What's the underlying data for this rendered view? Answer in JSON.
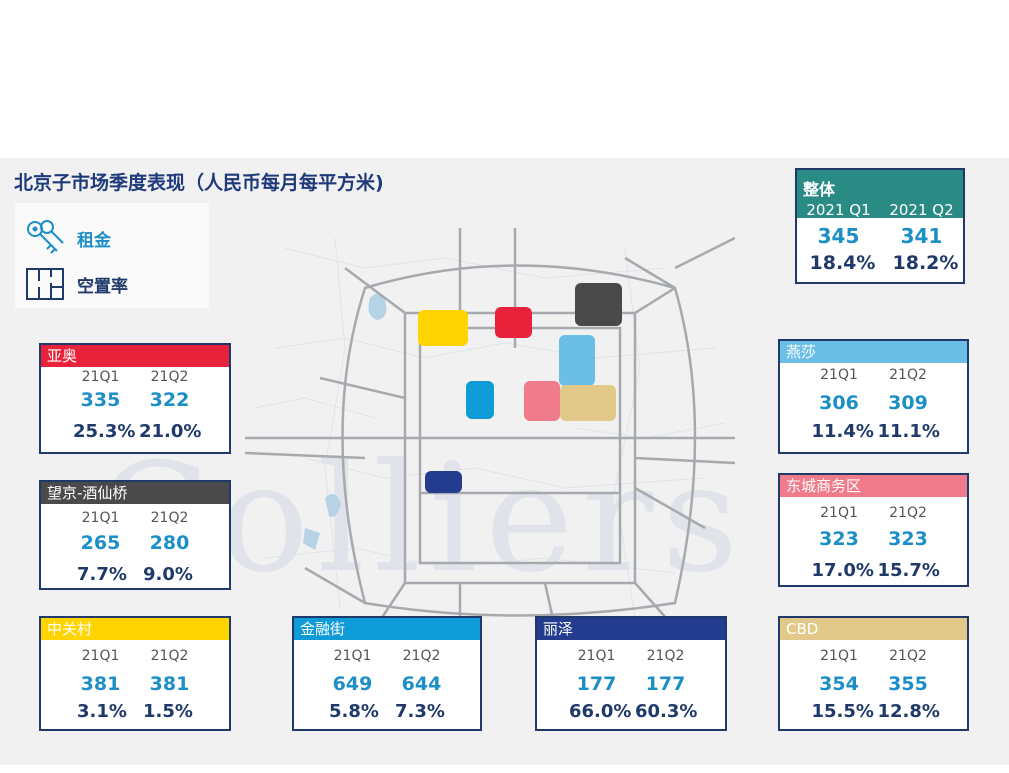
{
  "title": "北京子市场季度表现（人民币每月每平方米)",
  "legend": {
    "rent_label": "租金",
    "vacancy_label": "空置率",
    "rent_icon": "key-icon",
    "vacancy_icon": "floorplan-icon"
  },
  "watermark": "Colliers",
  "overall": {
    "title": "整体",
    "q1_label": "2021 Q1",
    "q2_label": "2021 Q2",
    "rent_q1": "345",
    "rent_q2": "341",
    "vac_q1": "18.4%",
    "vac_q2": "18.2%",
    "color": "#2a8a84"
  },
  "submarkets": [
    {
      "name": "亚奥",
      "color": "#e8223a",
      "q1": "21Q1",
      "q2": "21Q2",
      "rent_q1": "335",
      "rent_q2": "322",
      "vac_q1": "25.3%",
      "vac_q2": "21.0%"
    },
    {
      "name": "望京-酒仙桥",
      "color": "#4a4a4a",
      "q1": "21Q1",
      "q2": "21Q2",
      "rent_q1": "265",
      "rent_q2": "280",
      "vac_q1": "7.7%",
      "vac_q2": "9.0%"
    },
    {
      "name": "中关村",
      "color": "#ffd400",
      "q1": "21Q1",
      "q2": "21Q2",
      "rent_q1": "381",
      "rent_q2": "381",
      "vac_q1": "3.1%",
      "vac_q2": "1.5%"
    },
    {
      "name": "金融街",
      "color": "#0f9ad8",
      "q1": "21Q1",
      "q2": "21Q2",
      "rent_q1": "649",
      "rent_q2": "644",
      "vac_q1": "5.8%",
      "vac_q2": "7.3%"
    },
    {
      "name": "丽泽",
      "color": "#233c8e",
      "q1": "21Q1",
      "q2": "21Q2",
      "rent_q1": "177",
      "rent_q2": "177",
      "vac_q1": "66.0%",
      "vac_q2": "60.3%"
    },
    {
      "name": "燕莎",
      "color": "#6bbfe6",
      "q1": "21Q1",
      "q2": "21Q2",
      "rent_q1": "306",
      "rent_q2": "309",
      "vac_q1": "11.4%",
      "vac_q2": "11.1%"
    },
    {
      "name": "东城商务区",
      "color": "#f07b8a",
      "q1": "21Q1",
      "q2": "21Q2",
      "rent_q1": "323",
      "rent_q2": "323",
      "vac_q1": "17.0%",
      "vac_q2": "15.7%"
    },
    {
      "name": "CBD",
      "color": "#e2c98a",
      "q1": "21Q1",
      "q2": "21Q2",
      "rent_q1": "354",
      "rent_q2": "355",
      "vac_q1": "15.5%",
      "vac_q2": "12.8%"
    }
  ]
}
